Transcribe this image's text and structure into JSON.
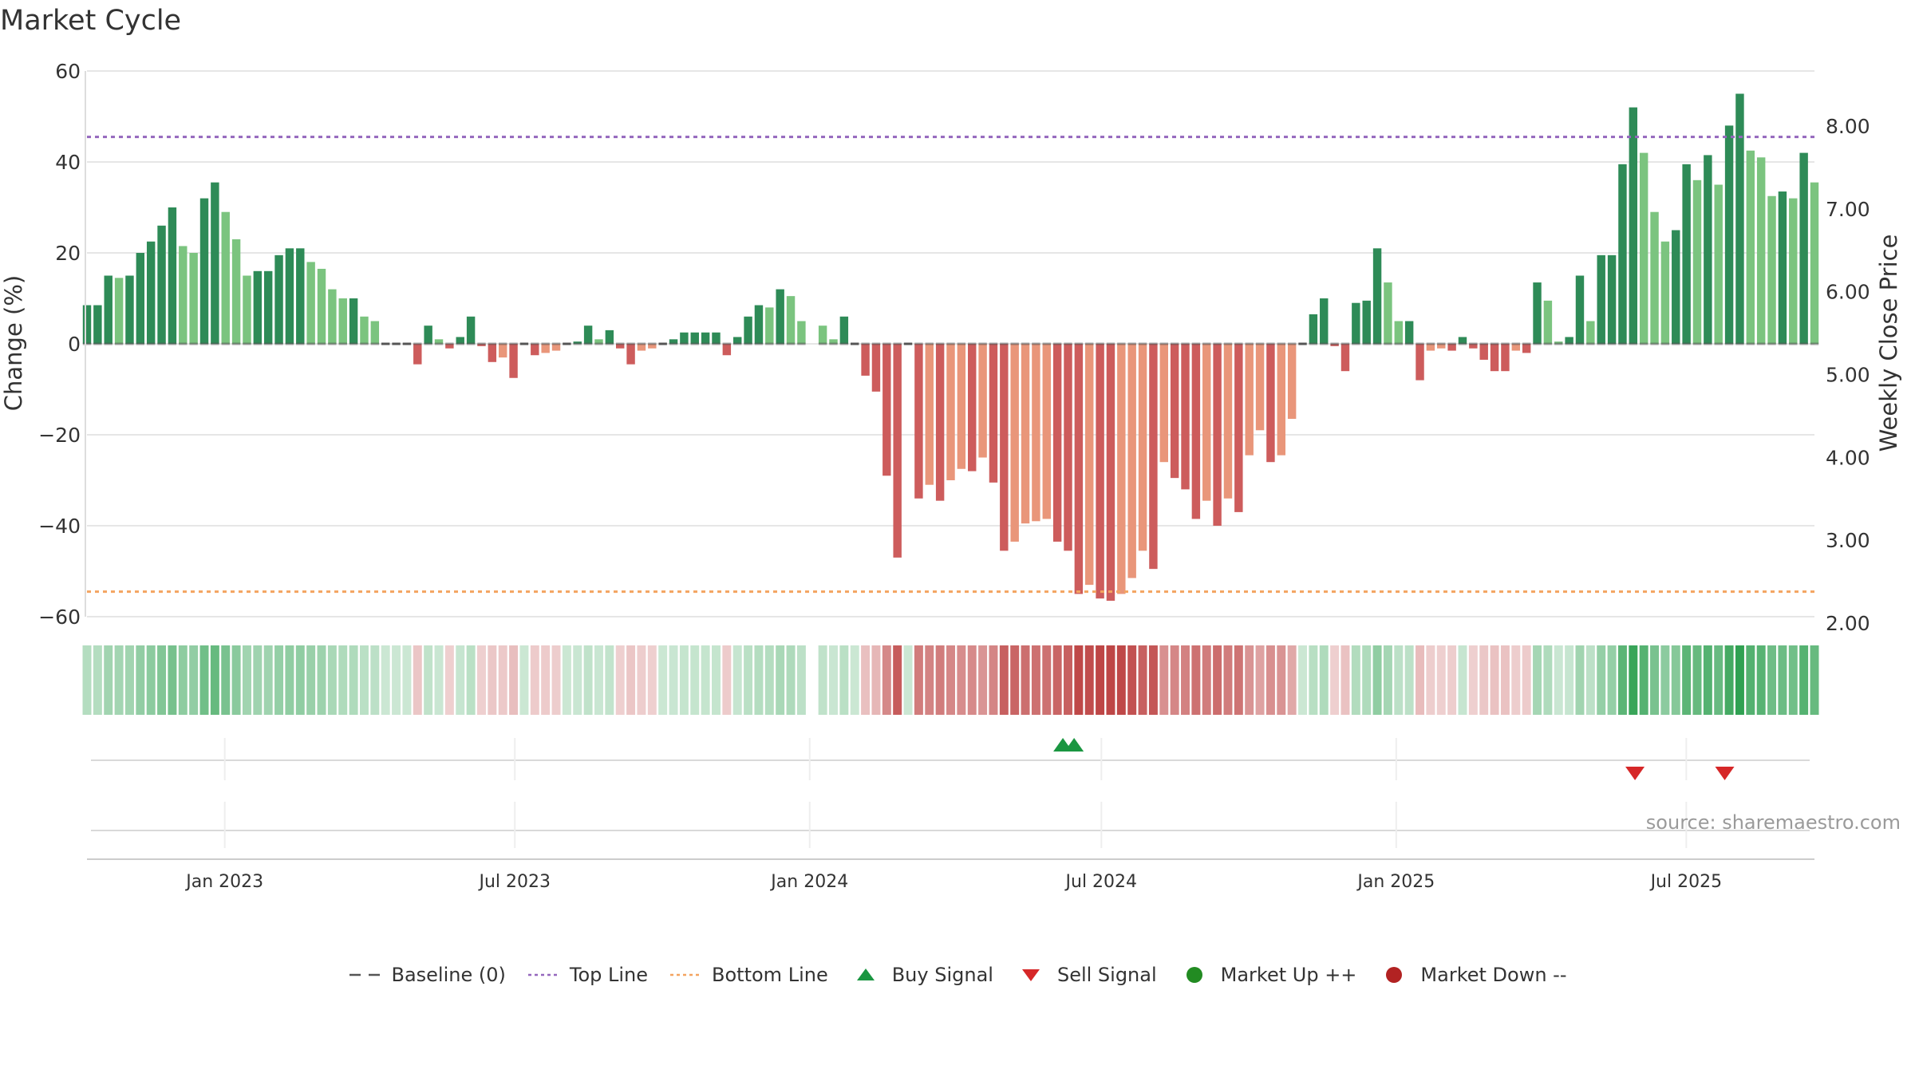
{
  "title": "Market Cycle",
  "source_text": "source: sharemaestro.com",
  "colors": {
    "strong_up": "#2e8b57",
    "up": "#7bc47f",
    "strong_down": "#cd5c5c",
    "down": "#e9967a",
    "top_line": "#9467bd",
    "bottom_line": "#f4a460",
    "buy_signal": "#1a9641",
    "sell_signal": "#d62728",
    "market_up": "#228b22",
    "market_down": "#b22222",
    "grid": "#e6e6e6"
  },
  "legend": [
    {
      "label": "Baseline (0)",
      "icon": "baseline-dash-icon"
    },
    {
      "label": "Top Line",
      "icon": "top-line-dotted-icon"
    },
    {
      "label": "Bottom Line",
      "icon": "bottom-line-dotted-icon"
    },
    {
      "label": "Buy Signal",
      "icon": "triangle-up-icon"
    },
    {
      "label": "Sell Signal",
      "icon": "triangle-down-icon"
    },
    {
      "label": "Market Up ++",
      "icon": "green-circle-icon"
    },
    {
      "label": "Market Down --",
      "icon": "red-circle-icon"
    }
  ],
  "chart_data": {
    "type": "bar",
    "title": "Market Cycle",
    "ylabel": "Change (%)",
    "y2label": "Weekly Close Price",
    "ylim": [
      -60,
      60
    ],
    "yticks": [
      60,
      40,
      20,
      0,
      -20,
      -40,
      -60
    ],
    "ytick_labels": [
      "60",
      "40",
      "20",
      "0",
      "−20",
      "−40",
      "−60"
    ],
    "y2ticks": [
      8.0,
      7.0,
      6.0,
      5.0,
      4.0,
      3.0,
      2.0
    ],
    "y2tick_labels": [
      "8.00",
      "7.00",
      "6.00",
      "5.00",
      "4.00",
      "3.00",
      "2.00"
    ],
    "x_start": "2022-10-07",
    "x_end": "2025-09-19",
    "x_step_days": 7,
    "xticks": [
      {
        "date": "2023-01-01",
        "label": "Jan 2023"
      },
      {
        "date": "2023-07-01",
        "label": "Jul 2023"
      },
      {
        "date": "2024-01-01",
        "label": "Jan 2024"
      },
      {
        "date": "2024-07-01",
        "label": "Jul 2024"
      },
      {
        "date": "2025-01-01",
        "label": "Jan 2025"
      },
      {
        "date": "2025-07-01",
        "label": "Jul 2025"
      }
    ],
    "top_line": 45.5,
    "bottom_line": -54.5,
    "grid": true,
    "legend_position": "bottom",
    "series": [
      {
        "name": "Change (%)",
        "values": [
          8.5,
          8.5,
          15,
          14.5,
          15,
          20,
          22.5,
          26,
          30,
          21.5,
          20,
          32,
          35.5,
          29,
          23,
          15,
          16,
          16,
          19.5,
          21,
          21,
          18,
          16.5,
          12,
          10,
          10,
          6,
          5,
          0,
          0,
          0,
          -4.5,
          4,
          1,
          -1,
          1.5,
          6,
          -0.5,
          -4,
          -3,
          -7.5,
          0,
          -2.5,
          -2,
          -1.5,
          0,
          0.5,
          4,
          1,
          3,
          -1,
          -4.5,
          -1.5,
          -1,
          0,
          1,
          2.5,
          2.5,
          2.5,
          2.5,
          -2.5,
          1.5,
          6,
          8.5,
          8,
          12,
          10.5,
          5,
          6,
          4,
          1,
          6,
          0,
          -7,
          -10.5,
          -29,
          -47,
          0,
          -34,
          -31,
          -34.5,
          -30,
          -27.5,
          -28,
          -25,
          -30.5,
          -45.5,
          -43.5,
          -39.5,
          -39,
          -38.5,
          -43.5,
          -45.5,
          -55,
          -53,
          -56,
          -56.5,
          -55,
          -51.5,
          -45.5,
          -49.5,
          -26,
          -29.5,
          -32,
          -38.5,
          -34.5,
          -40,
          -34,
          -37,
          -24.5,
          -19,
          -26,
          -24.5,
          -16.5,
          0,
          6.5,
          10,
          -0.5,
          -6,
          9,
          9.5,
          21,
          13.5,
          5,
          5,
          -8,
          -1.5,
          -1,
          -1.5,
          1.5,
          -1,
          -3.5,
          -6,
          -6,
          -1.5,
          -2,
          13.5,
          9.5,
          0.5,
          1.5,
          15,
          5,
          19.5,
          19.5,
          39.5,
          52,
          42,
          29,
          22.5,
          25,
          39.5,
          36,
          41.5,
          35,
          48,
          55,
          42.5,
          41,
          32.5,
          33.5,
          32,
          42,
          35.5
        ]
      }
    ],
    "buy_signals": [
      "2024-06-07",
      "2024-06-14"
    ],
    "sell_signals": [
      "2025-05-30",
      "2025-07-25"
    ],
    "gap_week": "2024-01-26"
  }
}
